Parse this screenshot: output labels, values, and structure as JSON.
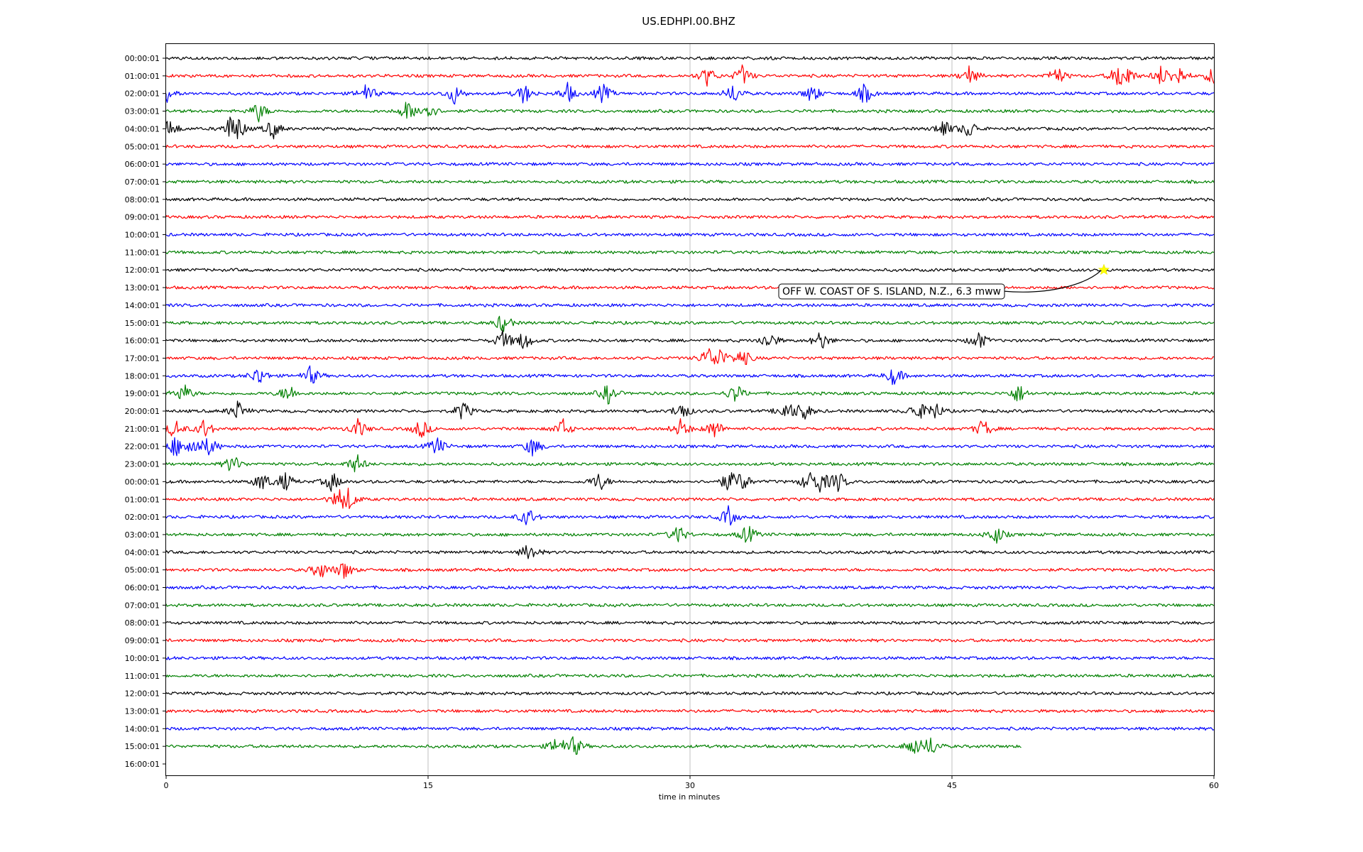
{
  "chart_data": {
    "type": "line",
    "title": "US.EDHPI.00.BHZ",
    "xlabel": "time in minutes",
    "ylabel": "",
    "xlim": [
      0,
      60
    ],
    "x_ticks": [
      0,
      15,
      30,
      45,
      60
    ],
    "grid": {
      "vertical": true,
      "horizontal": false
    },
    "colors": [
      "#000000",
      "#ff0000",
      "#0000ff",
      "#008000"
    ],
    "row_labels": [
      "00:00:01",
      "01:00:01",
      "02:00:01",
      "03:00:01",
      "04:00:01",
      "05:00:01",
      "06:00:01",
      "07:00:01",
      "08:00:01",
      "09:00:01",
      "10:00:01",
      "11:00:01",
      "12:00:01",
      "13:00:01",
      "14:00:01",
      "15:00:01",
      "16:00:01",
      "17:00:01",
      "18:00:01",
      "19:00:01",
      "20:00:01",
      "21:00:01",
      "22:00:01",
      "23:00:01",
      "00:00:01",
      "01:00:01",
      "02:00:01",
      "03:00:01",
      "04:00:01",
      "05:00:01",
      "06:00:01",
      "07:00:01",
      "08:00:01",
      "09:00:01",
      "10:00:01",
      "11:00:01",
      "12:00:01",
      "13:00:01",
      "14:00:01",
      "15:00:01",
      "16:00:01"
    ],
    "last_trace_end_minute": 49,
    "events": [
      {
        "row": 1,
        "minutes": [
          31,
          33,
          46,
          51,
          54.5,
          55,
          57,
          58,
          60
        ]
      },
      {
        "row": 2,
        "minutes": [
          0,
          11.5,
          16.5,
          20.5,
          23,
          25,
          32.5,
          37,
          40
        ]
      },
      {
        "row": 3,
        "minutes": [
          5.3,
          13.8,
          15
        ]
      },
      {
        "row": 4,
        "minutes": [
          0.2,
          3.7,
          4.1,
          6.1,
          44.5,
          46
        ]
      },
      {
        "row": 15,
        "minutes": [
          19.3
        ]
      },
      {
        "row": 16,
        "minutes": [
          19.3,
          20.5,
          34.5,
          37.5,
          46.5
        ]
      },
      {
        "row": 17,
        "minutes": [
          31,
          31.7,
          33
        ]
      },
      {
        "row": 18,
        "minutes": [
          5.3,
          8.3,
          41.7
        ]
      },
      {
        "row": 19,
        "minutes": [
          1,
          7,
          25.3,
          32.6,
          48.8
        ]
      },
      {
        "row": 20,
        "minutes": [
          4.1,
          17,
          29.5,
          35.5,
          36.5,
          43,
          44
        ]
      },
      {
        "row": 21,
        "minutes": [
          0.5,
          2.2,
          11,
          14.6,
          22.7,
          29.5,
          31.4,
          46.8
        ]
      },
      {
        "row": 22,
        "minutes": [
          0.5,
          1.5,
          2.5,
          15.5,
          21
        ]
      },
      {
        "row": 23,
        "minutes": [
          3.8,
          10.9
        ]
      },
      {
        "row": 24,
        "minutes": [
          5.5,
          6.8,
          9.5,
          24.8,
          32.2,
          33,
          36.8,
          37.5,
          38.5
        ]
      },
      {
        "row": 25,
        "minutes": [
          9.9,
          10.5
        ]
      },
      {
        "row": 26,
        "minutes": [
          20.7,
          32.2
        ]
      },
      {
        "row": 27,
        "minutes": [
          29.3,
          33.3,
          47.5
        ]
      },
      {
        "row": 28,
        "minutes": [
          20.8
        ]
      },
      {
        "row": 29,
        "minutes": [
          8.8,
          10.2
        ]
      },
      {
        "row": 39,
        "minutes": [
          22.4,
          23.4,
          42.8,
          43.8
        ]
      }
    ],
    "annotation": {
      "text": "OFF W. COAST OF S. ISLAND, N.Z., 6.3 mww",
      "row": 12,
      "minute": 53.7,
      "marker": "star",
      "marker_color": "#ffff00"
    }
  }
}
